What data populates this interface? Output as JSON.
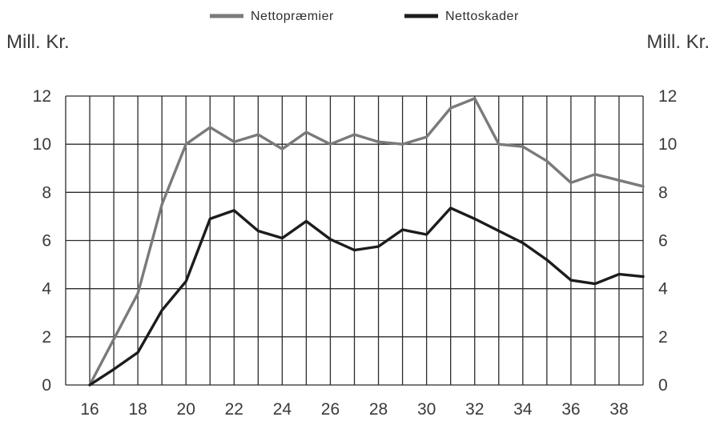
{
  "chart_data": {
    "type": "line",
    "title": "",
    "xlabel": "",
    "ylabel": "Mill. Kr.",
    "ylabel_right": "Mill. Kr.",
    "xlim": [
      15,
      39
    ],
    "ylim": [
      0,
      12
    ],
    "grid": true,
    "legend_position": "top-center",
    "x_ticks": [
      16,
      18,
      20,
      22,
      24,
      26,
      28,
      30,
      32,
      34,
      36,
      38
    ],
    "y_ticks": [
      0,
      2,
      4,
      6,
      8,
      10,
      12
    ],
    "x": [
      16,
      17,
      18,
      19,
      20,
      21,
      22,
      23,
      24,
      25,
      26,
      27,
      28,
      29,
      30,
      31,
      32,
      33,
      34,
      35,
      36,
      37,
      38,
      39
    ],
    "series": [
      {
        "name": "Nettopræmier",
        "color": "#7a7a7a",
        "values": [
          0,
          1.9,
          3.8,
          7.5,
          10.0,
          10.7,
          10.1,
          10.4,
          9.8,
          10.5,
          10.0,
          10.4,
          10.1,
          10.0,
          10.3,
          11.5,
          11.9,
          10.0,
          9.9,
          9.3,
          8.4,
          8.75,
          8.5,
          8.25
        ]
      },
      {
        "name": "Nettoskader",
        "color": "#1c1c1c",
        "values": [
          0,
          0.65,
          1.35,
          3.1,
          4.3,
          6.9,
          7.25,
          6.4,
          6.1,
          6.8,
          6.05,
          5.6,
          5.75,
          6.45,
          6.25,
          7.35,
          6.9,
          6.4,
          5.9,
          5.2,
          4.35,
          4.2,
          4.6,
          4.5
        ]
      }
    ]
  }
}
